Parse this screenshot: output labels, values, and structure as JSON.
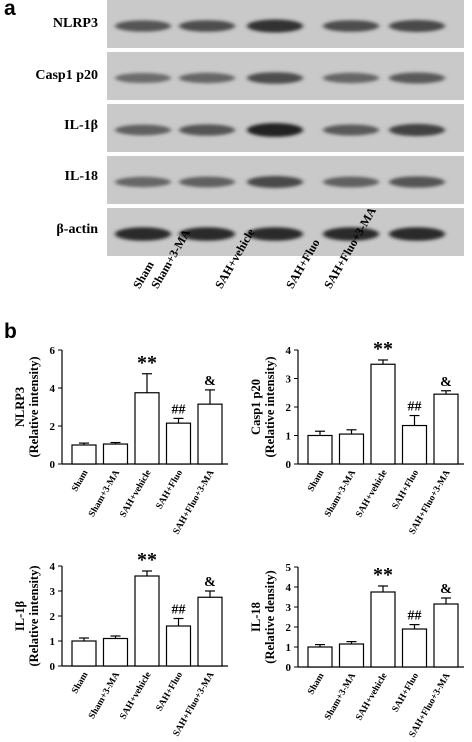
{
  "panel_a": {
    "letter": "a",
    "blot_labels": [
      "NLRP3",
      "Casp1 p20",
      "IL-1β",
      "IL-18",
      "β-actin"
    ],
    "band_intensity": [
      [
        0.55,
        0.6,
        0.85,
        0.6,
        0.65
      ],
      [
        0.35,
        0.4,
        0.6,
        0.4,
        0.5
      ],
      [
        0.45,
        0.55,
        0.95,
        0.5,
        0.7
      ],
      [
        0.4,
        0.45,
        0.65,
        0.45,
        0.55
      ],
      [
        0.9,
        0.9,
        0.9,
        0.9,
        0.9
      ]
    ],
    "lane_labels": [
      "Sham",
      "Sham+3-MA",
      "SAH+vehicle",
      "SAH+Fluo",
      "SAH+Fluo+3-MA"
    ]
  },
  "panel_b": {
    "letter": "b"
  },
  "chart_data": [
    {
      "type": "bar",
      "ylabel": [
        "NLRP3",
        "(Relative intensity)"
      ],
      "categories": [
        "Sham",
        "Sham+3-MA",
        "SAH+vehicle",
        "SAH+Fluo",
        "SAH+Fluo+3-MA"
      ],
      "values": [
        1.0,
        1.05,
        3.75,
        2.15,
        3.15
      ],
      "errors": [
        0.1,
        0.08,
        1.0,
        0.25,
        0.75
      ],
      "annotations": [
        "",
        "",
        "**",
        "##",
        "&"
      ],
      "ylim": [
        0,
        6
      ],
      "yticks": [
        0,
        2,
        4,
        6
      ]
    },
    {
      "type": "bar",
      "ylabel": [
        "Casp1 p20",
        "(Relative intensity)"
      ],
      "categories": [
        "Sham",
        "Sham+3-MA",
        "SAH+vehicle",
        "SAH+Fluo",
        "SAH+Fluo+3-MA"
      ],
      "values": [
        1.0,
        1.05,
        3.5,
        1.35,
        2.45
      ],
      "errors": [
        0.15,
        0.15,
        0.15,
        0.35,
        0.12
      ],
      "annotations": [
        "",
        "",
        "**",
        "##",
        "&"
      ],
      "ylim": [
        0,
        4
      ],
      "yticks": [
        0,
        1,
        2,
        3,
        4
      ]
    },
    {
      "type": "bar",
      "ylabel": [
        "IL-1β",
        "(Relative intensity)"
      ],
      "categories": [
        "Sham",
        "Sham+3-MA",
        "SAH+vehicle",
        "SAH+Fluo",
        "SAH+Fluo+3-MA"
      ],
      "values": [
        1.0,
        1.1,
        3.6,
        1.6,
        2.75
      ],
      "errors": [
        0.12,
        0.1,
        0.2,
        0.3,
        0.25
      ],
      "annotations": [
        "",
        "",
        "**",
        "##",
        "&"
      ],
      "ylim": [
        0,
        4
      ],
      "yticks": [
        0,
        1,
        2,
        3,
        4
      ]
    },
    {
      "type": "bar",
      "ylabel": [
        "IL-18",
        "(Relative density)"
      ],
      "categories": [
        "Sham",
        "Sham+3-MA",
        "SAH+vehicle",
        "SAH+Fluo",
        "SAH+Fluo+3-MA"
      ],
      "values": [
        1.0,
        1.15,
        3.75,
        1.9,
        3.15
      ],
      "errors": [
        0.12,
        0.12,
        0.3,
        0.22,
        0.3
      ],
      "annotations": [
        "",
        "",
        "**",
        "##",
        "&"
      ],
      "ylim": [
        0,
        5
      ],
      "yticks": [
        0,
        1,
        2,
        3,
        4,
        5
      ]
    }
  ]
}
